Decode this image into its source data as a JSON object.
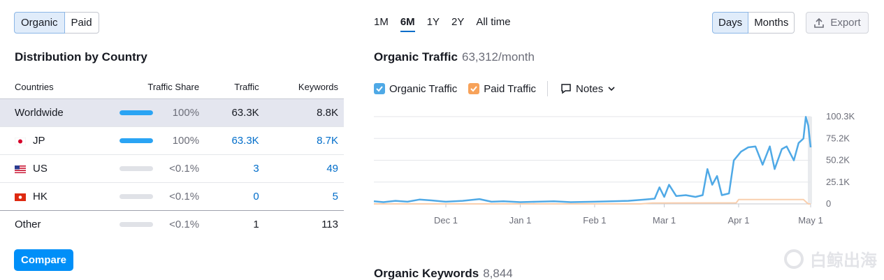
{
  "source_toggle": {
    "organic": "Organic",
    "paid": "Paid"
  },
  "distribution": {
    "title": "Distribution by Country",
    "columns": {
      "countries": "Countries",
      "share": "Traffic Share",
      "traffic": "Traffic",
      "keywords": "Keywords"
    },
    "rows": [
      {
        "country": "Worldwide",
        "flag": "",
        "share": "100%",
        "share_fraction": 1.0,
        "traffic": "63.3K",
        "keywords": "8.8K"
      },
      {
        "country": "JP",
        "flag": "jp-flag-icon",
        "share": "100%",
        "share_fraction": 1.0,
        "traffic": "63.3K",
        "keywords": "8.7K"
      },
      {
        "country": "US",
        "flag": "us-flag-icon",
        "share": "<0.1%",
        "share_fraction": 0.0,
        "traffic": "3",
        "keywords": "49"
      },
      {
        "country": "HK",
        "flag": "hk-flag-icon",
        "share": "<0.1%",
        "share_fraction": 0.0,
        "traffic": "0",
        "keywords": "5"
      },
      {
        "country": "Other",
        "flag": "",
        "share": "<0.1%",
        "share_fraction": 0.0,
        "traffic": "1",
        "keywords": "113"
      }
    ],
    "compare_label": "Compare"
  },
  "periods": [
    "1M",
    "6M",
    "1Y",
    "2Y",
    "All time"
  ],
  "active_period": "6M",
  "granularity": {
    "days": "Days",
    "months": "Months"
  },
  "export_label": "Export",
  "traffic": {
    "title": "Organic Traffic",
    "value": "63,312/month"
  },
  "legend": {
    "organic": "Organic Traffic",
    "paid": "Paid Traffic",
    "notes": "Notes"
  },
  "colors": {
    "organic": "#4fa9e6",
    "paid": "#f7a25a",
    "accent": "#008ff8",
    "link": "#006dca"
  },
  "chart_data": {
    "type": "line",
    "x_ticks": [
      "Dec 1",
      "Jan 1",
      "Feb 1",
      "Mar 1",
      "Apr 1",
      "May 1"
    ],
    "y_ticks": [
      "100.3K",
      "75.2K",
      "50.2K",
      "25.1K",
      "0"
    ],
    "ylim": [
      0,
      100300
    ],
    "x_start": "2023-11-01",
    "x_end": "2024-05-01",
    "series": [
      {
        "name": "Organic Traffic",
        "points": [
          [
            "2023-11-01",
            3000
          ],
          [
            "2023-11-05",
            2000
          ],
          [
            "2023-11-10",
            3500
          ],
          [
            "2023-11-15",
            2500
          ],
          [
            "2023-11-20",
            5000
          ],
          [
            "2023-11-25",
            4000
          ],
          [
            "2023-12-01",
            2500
          ],
          [
            "2023-12-08",
            3500
          ],
          [
            "2023-12-15",
            5500
          ],
          [
            "2023-12-20",
            2500
          ],
          [
            "2023-12-25",
            3000
          ],
          [
            "2024-01-01",
            2000
          ],
          [
            "2024-01-08",
            2500
          ],
          [
            "2024-01-15",
            3000
          ],
          [
            "2024-01-22",
            2000
          ],
          [
            "2024-02-01",
            2500
          ],
          [
            "2024-02-08",
            3000
          ],
          [
            "2024-02-15",
            3500
          ],
          [
            "2024-02-22",
            5000
          ],
          [
            "2024-02-26",
            6000
          ],
          [
            "2024-02-28",
            19000
          ],
          [
            "2024-03-01",
            8000
          ],
          [
            "2024-03-03",
            22000
          ],
          [
            "2024-03-06",
            9000
          ],
          [
            "2024-03-10",
            10000
          ],
          [
            "2024-03-14",
            8000
          ],
          [
            "2024-03-17",
            10000
          ],
          [
            "2024-03-19",
            40000
          ],
          [
            "2024-03-21",
            22000
          ],
          [
            "2024-03-23",
            32000
          ],
          [
            "2024-03-25",
            10000
          ],
          [
            "2024-03-28",
            12000
          ],
          [
            "2024-03-30",
            50000
          ],
          [
            "2024-04-02",
            60000
          ],
          [
            "2024-04-05",
            65000
          ],
          [
            "2024-04-08",
            66000
          ],
          [
            "2024-04-11",
            45000
          ],
          [
            "2024-04-14",
            66000
          ],
          [
            "2024-04-16",
            40000
          ],
          [
            "2024-04-19",
            63000
          ],
          [
            "2024-04-21",
            66000
          ],
          [
            "2024-04-24",
            50000
          ],
          [
            "2024-04-26",
            70000
          ],
          [
            "2024-04-28",
            75000
          ],
          [
            "2024-04-29",
            100000
          ],
          [
            "2024-04-30",
            90000
          ],
          [
            "2024-05-01",
            65000
          ]
        ]
      },
      {
        "name": "Paid Traffic",
        "points": [
          [
            "2023-11-01",
            0
          ],
          [
            "2024-02-01",
            0
          ],
          [
            "2024-02-20",
            0
          ],
          [
            "2024-02-25",
            1000
          ],
          [
            "2024-03-31",
            1200
          ],
          [
            "2024-04-01",
            5000
          ],
          [
            "2024-04-25",
            5000
          ],
          [
            "2024-04-28",
            5000
          ],
          [
            "2024-04-30",
            0
          ],
          [
            "2024-05-01",
            0
          ]
        ]
      }
    ]
  },
  "keywords": {
    "title": "Organic Keywords",
    "value": "8,844"
  },
  "watermark": "白鲸出海"
}
